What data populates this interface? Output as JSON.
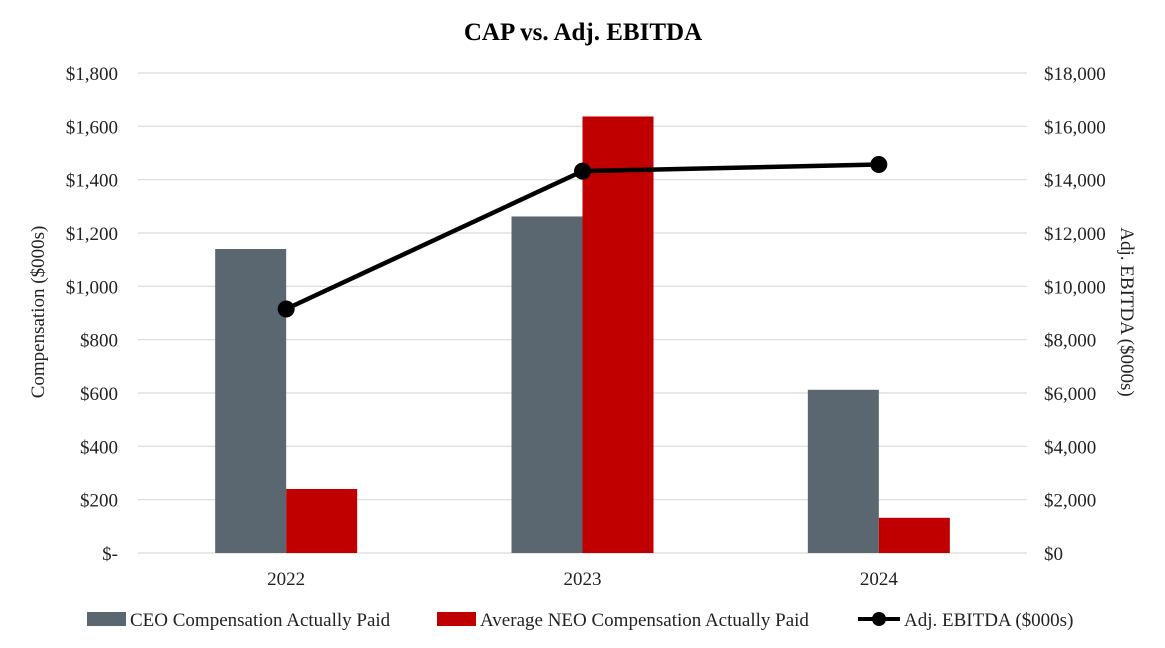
{
  "chart_data": {
    "type": "bar",
    "title": "CAP vs. Adj. EBITDA",
    "categories": [
      "2022",
      "2023",
      "2024"
    ],
    "ylabel": "Compensation ($000s)",
    "y2label": "Adj. EBITDA ($000s)",
    "ylim": [
      0,
      1800
    ],
    "y2lim": [
      0,
      18000
    ],
    "yticks": [
      "$-",
      "$200",
      "$400",
      "$600",
      "$800",
      "$1,000",
      "$1,200",
      "$1,400",
      "$1,600",
      "$1,800"
    ],
    "y2ticks": [
      "$0",
      "$2,000",
      "$4,000",
      "$6,000",
      "$8,000",
      "$10,000",
      "$12,000",
      "$14,000",
      "$16,000",
      "$18,000"
    ],
    "grid": true,
    "legend_position": "bottom",
    "series": [
      {
        "name": "CEO Compensation Actually Paid",
        "kind": "bar",
        "axis": "left",
        "color": "#5b6770",
        "values": [
          1140,
          1262,
          612
        ]
      },
      {
        "name": "Average NEO Compensation Actually Paid",
        "kind": "bar",
        "axis": "left",
        "color": "#c00000",
        "values": [
          240,
          1637,
          132
        ]
      },
      {
        "name": "Adj. EBITDA ($000s)",
        "kind": "line",
        "axis": "right",
        "color": "#000000",
        "values": [
          9150,
          14320,
          14570
        ]
      }
    ]
  }
}
